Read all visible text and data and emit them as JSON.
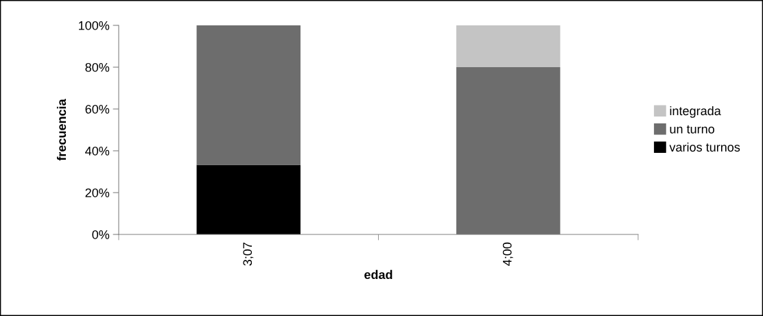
{
  "chart_data": {
    "type": "bar",
    "stacked": true,
    "xlabel": "edad",
    "ylabel": "frecuencia",
    "categories": [
      "3;07",
      "4;00"
    ],
    "series": [
      {
        "name": "varios turnos",
        "color": "#000000",
        "values": [
          33.3,
          0
        ]
      },
      {
        "name": "un turno",
        "color": "#6d6d6d",
        "values": [
          66.7,
          80
        ]
      },
      {
        "name": "integrada",
        "color": "#c4c4c4",
        "values": [
          0,
          20
        ]
      }
    ],
    "ylim": [
      0,
      100
    ],
    "yticks": [
      {
        "value": 0,
        "label": "0%"
      },
      {
        "value": 20,
        "label": "20%"
      },
      {
        "value": 40,
        "label": "40%"
      },
      {
        "value": 60,
        "label": "60%"
      },
      {
        "value": 80,
        "label": "80%"
      },
      {
        "value": 100,
        "label": "100%"
      }
    ],
    "grid": false,
    "legend": "right"
  }
}
